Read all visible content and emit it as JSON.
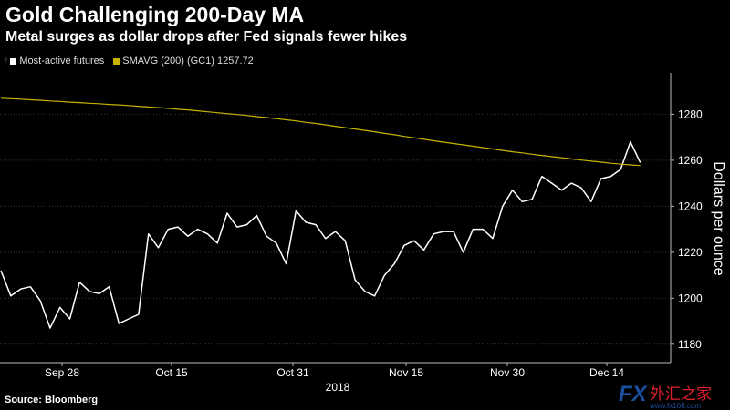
{
  "header": {
    "title": "Gold Challenging 200-Day MA",
    "subtitle": "Metal surges as dollar drops after Fed signals fewer hikes"
  },
  "legend": {
    "series1_label": "Most-active futures",
    "series2_label": "SMAVG (200) (GC1) 1257.72"
  },
  "footer": {
    "source": "Source: Bloomberg"
  },
  "watermark": {
    "brand": "FX",
    "chinese": "外汇之家",
    "site": "www.fx168.com"
  },
  "colors": {
    "background": "#000000",
    "price_line": "#ffffff",
    "ma_line": "#c8b400",
    "grid": "#3a3a3a"
  },
  "chart_data": {
    "type": "line",
    "title": "Gold Challenging 200-Day MA",
    "subtitle": "Metal surges as dollar drops after Fed signals fewer hikes",
    "xlabel": "2018",
    "ylabel": "Dollars per ounce",
    "ylim": [
      1172,
      1298
    ],
    "yticks": [
      1180,
      1200,
      1220,
      1240,
      1260,
      1280
    ],
    "x_tick_labels": [
      "Sep 28",
      "Oct 15",
      "Oct 31",
      "Nov 15",
      "Nov 30",
      "Dec 14"
    ],
    "x_axis_year": "2018",
    "grid": true,
    "legend_position": "top-left",
    "series": [
      {
        "name": "Most-active futures",
        "color": "#ffffff",
        "values": [
          1212,
          1201,
          1204,
          1205,
          1199,
          1187,
          1196,
          1191,
          1207,
          1203,
          1202,
          1205,
          1189,
          1191,
          1193,
          1228,
          1222,
          1230,
          1231,
          1227,
          1230,
          1228,
          1224,
          1237,
          1231,
          1232,
          1236,
          1227,
          1224,
          1215,
          1238,
          1233,
          1232,
          1226,
          1229,
          1225,
          1208,
          1203,
          1201,
          1210,
          1215,
          1223,
          1225,
          1221,
          1228,
          1229,
          1229,
          1220,
          1230,
          1230,
          1226,
          1240,
          1247,
          1242,
          1243,
          1253,
          1250,
          1247,
          1250,
          1248,
          1242,
          1252,
          1253,
          1256,
          1268,
          1259
        ]
      },
      {
        "name": "SMAVG (200) (GC1) 1257.72",
        "color": "#c8b400",
        "values": [
          1287,
          1286.8,
          1286.6,
          1286.3,
          1286.1,
          1285.8,
          1285.6,
          1285.3,
          1285.1,
          1284.8,
          1284.6,
          1284.3,
          1284.1,
          1283.8,
          1283.5,
          1283.2,
          1282.9,
          1282.6,
          1282.2,
          1281.9,
          1281.5,
          1281.1,
          1280.7,
          1280.3,
          1279.9,
          1279.5,
          1279,
          1278.6,
          1278.1,
          1277.6,
          1277.1,
          1276.5,
          1276,
          1275.4,
          1274.8,
          1274.2,
          1273.6,
          1273,
          1272.4,
          1271.7,
          1271.1,
          1270.4,
          1269.8,
          1269.1,
          1268.5,
          1267.9,
          1267.3,
          1266.7,
          1266.1,
          1265.5,
          1264.9,
          1264.3,
          1263.7,
          1263.2,
          1262.6,
          1262.1,
          1261.6,
          1261.1,
          1260.6,
          1260.1,
          1259.6,
          1259.2,
          1258.7,
          1258.3,
          1258,
          1257.72
        ]
      }
    ]
  }
}
